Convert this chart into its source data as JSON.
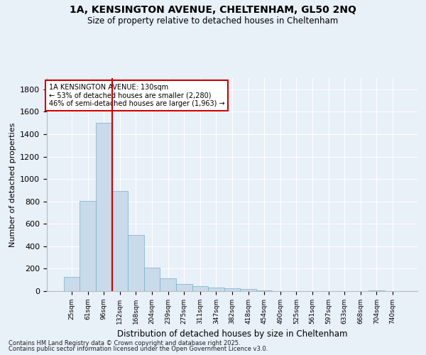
{
  "title_line1": "1A, KENSINGTON AVENUE, CHELTENHAM, GL50 2NQ",
  "title_line2": "Size of property relative to detached houses in Cheltenham",
  "xlabel": "Distribution of detached houses by size in Cheltenham",
  "ylabel": "Number of detached properties",
  "categories": [
    "25sqm",
    "61sqm",
    "96sqm",
    "132sqm",
    "168sqm",
    "204sqm",
    "239sqm",
    "275sqm",
    "311sqm",
    "347sqm",
    "382sqm",
    "418sqm",
    "454sqm",
    "490sqm",
    "525sqm",
    "561sqm",
    "597sqm",
    "633sqm",
    "668sqm",
    "704sqm",
    "740sqm"
  ],
  "values": [
    127,
    805,
    1500,
    890,
    503,
    208,
    113,
    62,
    45,
    32,
    27,
    18,
    4,
    2,
    1,
    1,
    1,
    0,
    0,
    8,
    0
  ],
  "bar_color": "#c9daea",
  "bar_edge_color": "#7aafc8",
  "vline_color": "#cc0000",
  "vline_x_index": 2,
  "annotation_title": "1A KENSINGTON AVENUE: 130sqm",
  "annotation_line2": "← 53% of detached houses are smaller (2,280)",
  "annotation_line3": "46% of semi-detached houses are larger (1,963) →",
  "annotation_box_color": "#cc0000",
  "annotation_bg": "#ffffff",
  "ylim": [
    0,
    1900
  ],
  "yticks": [
    0,
    200,
    400,
    600,
    800,
    1000,
    1200,
    1400,
    1600,
    1800
  ],
  "footnote1": "Contains HM Land Registry data © Crown copyright and database right 2025.",
  "footnote2": "Contains public sector information licensed under the Open Government Licence v3.0.",
  "bg_color": "#e8f0f8",
  "plot_bg_color": "#e8f0f8"
}
